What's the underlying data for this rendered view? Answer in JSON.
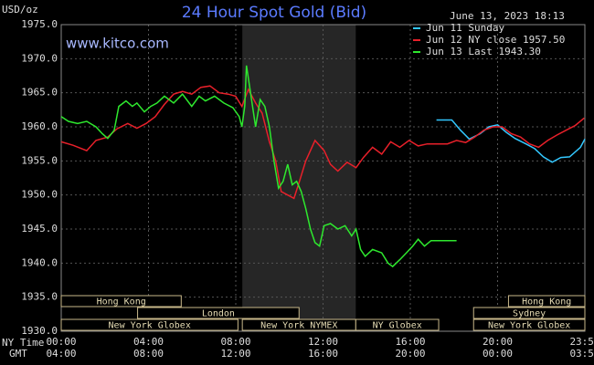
{
  "chart_data": {
    "type": "line",
    "title": "24 Hour Spot Gold (Bid)",
    "timestamp": "June 13, 2023 18:13",
    "watermark": "www.kitco.com",
    "y_label": "USD/oz",
    "x_label": "NY Time",
    "x2_label": "GMT",
    "xlim": [
      0,
      24
    ],
    "ylim": [
      1930,
      1975
    ],
    "xticks": [
      {
        "value": 0,
        "label": "00:00"
      },
      {
        "value": 4,
        "label": "04:00"
      },
      {
        "value": 8,
        "label": "08:00"
      },
      {
        "value": 12,
        "label": "12:00"
      },
      {
        "value": 16,
        "label": "16:00"
      },
      {
        "value": 20,
        "label": "20:00"
      },
      {
        "value": 24,
        "label": "23:59"
      }
    ],
    "x2ticks": [
      {
        "value": 0,
        "label": "04:00"
      },
      {
        "value": 4,
        "label": "08:00"
      },
      {
        "value": 8,
        "label": "12:00"
      },
      {
        "value": 12,
        "label": "16:00"
      },
      {
        "value": 16,
        "label": "20:00"
      },
      {
        "value": 20,
        "label": "00:00"
      },
      {
        "value": 24,
        "label": "03:59"
      }
    ],
    "yticks": [
      {
        "value": 1930,
        "label": "1930.0"
      },
      {
        "value": 1935,
        "label": "1935.0"
      },
      {
        "value": 1940,
        "label": "1940.0"
      },
      {
        "value": 1945,
        "label": "1945.0"
      },
      {
        "value": 1950,
        "label": "1950.0"
      },
      {
        "value": 1955,
        "label": "1955.0"
      },
      {
        "value": 1960,
        "label": "1960.0"
      },
      {
        "value": 1965,
        "label": "1965.0"
      },
      {
        "value": 1970,
        "label": "1970.0"
      },
      {
        "value": 1975,
        "label": "1975.0"
      }
    ],
    "grid": true,
    "shaded_region": [
      8.3,
      13.5
    ],
    "legend": "top-right",
    "sessions": [
      [
        {
          "label": "Hong Kong",
          "start": 0,
          "end": 5.5
        },
        {
          "label": "Hong Kong",
          "start": 20.5,
          "end": 24
        }
      ],
      [
        {
          "label": "London",
          "start": 3.5,
          "end": 10.9
        },
        {
          "label": "Sydney",
          "start": 18.9,
          "end": 24
        }
      ],
      [
        {
          "label": "New York Globex",
          "start": 0,
          "end": 8.1
        },
        {
          "label": "New York NYMEX",
          "start": 8.3,
          "end": 13.5
        },
        {
          "label": "NY Globex",
          "start": 13.5,
          "end": 17.3
        },
        {
          "label": "New York Globex",
          "start": 18.9,
          "end": 24
        }
      ]
    ],
    "series": [
      {
        "name": "Jun 11 Sunday",
        "color": "#33c8ff",
        "x": [
          17.2,
          17.9,
          18.3,
          18.7,
          19.2,
          19.6,
          20.0,
          20.4,
          20.8,
          21.3,
          21.7,
          22.1,
          22.5,
          22.9,
          23.3,
          23.8,
          24.0
        ],
        "values": [
          1961.0,
          1961.0,
          1959.5,
          1958.2,
          1959.0,
          1960.0,
          1960.3,
          1959.2,
          1958.3,
          1957.5,
          1956.8,
          1955.6,
          1954.8,
          1955.5,
          1955.6,
          1957.0,
          1958.2
        ]
      },
      {
        "name": "Jun 12 NY close 1957.50",
        "color": "#e8202a",
        "x": [
          0,
          0.54,
          1.17,
          1.59,
          2.13,
          2.55,
          3.05,
          3.47,
          3.89,
          4.31,
          4.73,
          5.15,
          5.56,
          5.98,
          6.4,
          6.82,
          7.24,
          7.66,
          7.99,
          8.28,
          8.58,
          8.91,
          9.21,
          9.54,
          9.83,
          10.08,
          10.38,
          10.67,
          10.92,
          11.21,
          11.63,
          12.05,
          12.34,
          12.68,
          13.1,
          13.51,
          13.85,
          14.27,
          14.69,
          15.1,
          15.52,
          15.94,
          16.36,
          16.78,
          17.2,
          17.7,
          18.12,
          18.54,
          18.95,
          19.37,
          19.79,
          20.21,
          20.63,
          21.05,
          21.46,
          21.88,
          22.3,
          22.72,
          23.14,
          23.56,
          23.97
        ],
        "values": [
          1957.8,
          1957.3,
          1956.5,
          1958.0,
          1958.5,
          1959.7,
          1960.5,
          1959.8,
          1960.5,
          1961.5,
          1963.3,
          1964.8,
          1965.2,
          1964.8,
          1965.8,
          1966.0,
          1965.0,
          1964.8,
          1964.5,
          1963.0,
          1965.5,
          1963.5,
          1962.0,
          1957.8,
          1955.0,
          1950.5,
          1950.0,
          1949.5,
          1952.0,
          1955.0,
          1958.0,
          1956.5,
          1954.5,
          1953.5,
          1954.8,
          1954.0,
          1955.5,
          1957.0,
          1956.0,
          1957.8,
          1957.0,
          1958.0,
          1957.2,
          1957.5,
          1957.5,
          1957.5,
          1958.0,
          1957.7,
          1958.5,
          1959.5,
          1960.0,
          1960.0,
          1959.0,
          1958.5,
          1957.5,
          1957.0,
          1958.0,
          1958.8,
          1959.5,
          1960.2,
          1961.3
        ]
      },
      {
        "name": "Jun 13 Last 1943.30",
        "color": "#2ee82e",
        "x": [
          0,
          0.33,
          0.75,
          1.17,
          1.59,
          1.88,
          2.13,
          2.43,
          2.64,
          2.97,
          3.26,
          3.47,
          3.81,
          4.1,
          4.39,
          4.73,
          5.15,
          5.56,
          5.98,
          6.32,
          6.61,
          7.03,
          7.45,
          7.87,
          8.16,
          8.28,
          8.41,
          8.49,
          8.7,
          8.91,
          9.12,
          9.33,
          9.54,
          9.75,
          9.96,
          10.17,
          10.38,
          10.59,
          10.79,
          11.0,
          11.21,
          11.42,
          11.63,
          11.84,
          12.05,
          12.34,
          12.68,
          13.01,
          13.31,
          13.51,
          13.72,
          13.93,
          14.27,
          14.69,
          14.98,
          15.19,
          15.52,
          15.82,
          16.11,
          16.36,
          16.65,
          16.95,
          17.28,
          17.7,
          18.12
        ],
        "values": [
          1961.5,
          1960.8,
          1960.5,
          1960.8,
          1960.0,
          1959.0,
          1958.3,
          1959.5,
          1963.0,
          1963.8,
          1963.0,
          1963.5,
          1962.2,
          1963.0,
          1963.5,
          1964.5,
          1963.5,
          1964.8,
          1963.0,
          1964.5,
          1963.8,
          1964.5,
          1963.5,
          1962.8,
          1961.5,
          1960.0,
          1963.0,
          1969.0,
          1964.5,
          1960.0,
          1964.0,
          1963.0,
          1960.0,
          1955.0,
          1951.0,
          1952.0,
          1954.5,
          1951.5,
          1952.0,
          1950.5,
          1948.0,
          1945.0,
          1943.0,
          1942.5,
          1945.5,
          1945.8,
          1945.0,
          1945.5,
          1944.0,
          1945.0,
          1942.0,
          1941.0,
          1942.0,
          1941.5,
          1940.0,
          1939.5,
          1940.5,
          1941.5,
          1942.5,
          1943.5,
          1942.5,
          1943.3,
          1943.3,
          1943.3,
          1943.3
        ]
      }
    ]
  }
}
